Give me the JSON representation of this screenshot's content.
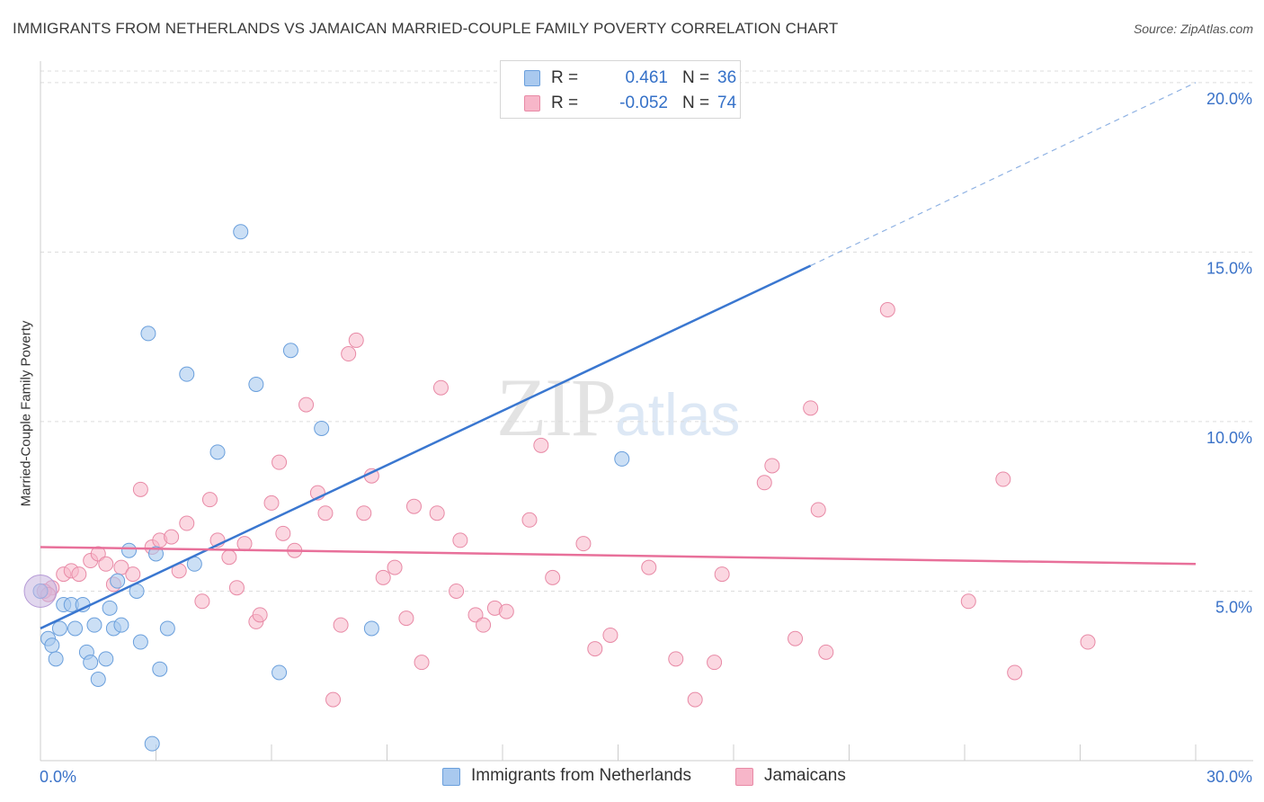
{
  "title": "IMMIGRANTS FROM NETHERLANDS VS JAMAICAN MARRIED-COUPLE FAMILY POVERTY CORRELATION CHART",
  "source": "Source: ZipAtlas.com",
  "watermark": {
    "zip": "ZIP",
    "atlas": "atlas"
  },
  "legend": {
    "series1": {
      "r_label": "R =",
      "r_value": "0.461",
      "n_label": "N =",
      "n_value": "36"
    },
    "series2": {
      "r_label": "R =",
      "r_value": "-0.052",
      "n_label": "N =",
      "n_value": "74"
    }
  },
  "chart_data": {
    "type": "scatter",
    "title": "IMMIGRANTS FROM NETHERLANDS VS JAMAICAN MARRIED-COUPLE FAMILY POVERTY CORRELATION CHART",
    "xlabel": "",
    "ylabel": "Married-Couple Family Poverty",
    "xlim": [
      0,
      30
    ],
    "ylim": [
      0,
      20.5
    ],
    "x_tick_labels": [
      "0.0%",
      "30.0%"
    ],
    "y_ticks": [
      5,
      10,
      15,
      20
    ],
    "y_tick_labels": [
      "5.0%",
      "10.0%",
      "15.0%",
      "20.0%"
    ],
    "colors": {
      "series1_fill": "#a9c9ef",
      "series1_stroke": "#6a9fdc",
      "series1_line": "#3a77d0",
      "series2_fill": "#f7b6c9",
      "series2_stroke": "#e88aa6",
      "series2_line": "#e8709a"
    },
    "series": [
      {
        "name": "Immigrants from Netherlands",
        "r": 0.461,
        "n": 36,
        "trend": {
          "x0": 0,
          "y0": 3.9,
          "x1": 20,
          "y1": 14.6,
          "dash_to_x": 30,
          "dash_to_y": 20.0
        },
        "points": [
          [
            0.0,
            5.0
          ],
          [
            0.2,
            3.6
          ],
          [
            0.3,
            3.4
          ],
          [
            0.4,
            3.0
          ],
          [
            0.5,
            3.9
          ],
          [
            0.6,
            4.6
          ],
          [
            0.8,
            4.6
          ],
          [
            0.9,
            3.9
          ],
          [
            1.1,
            4.6
          ],
          [
            1.2,
            3.2
          ],
          [
            1.3,
            2.9
          ],
          [
            1.4,
            4.0
          ],
          [
            1.5,
            2.4
          ],
          [
            1.7,
            3.0
          ],
          [
            1.8,
            4.5
          ],
          [
            1.9,
            3.9
          ],
          [
            2.0,
            5.3
          ],
          [
            2.1,
            4.0
          ],
          [
            2.3,
            6.2
          ],
          [
            2.5,
            5.0
          ],
          [
            2.6,
            3.5
          ],
          [
            2.8,
            12.6
          ],
          [
            2.9,
            0.5
          ],
          [
            3.0,
            6.1
          ],
          [
            3.1,
            2.7
          ],
          [
            3.3,
            3.9
          ],
          [
            3.8,
            11.4
          ],
          [
            4.0,
            5.8
          ],
          [
            4.6,
            9.1
          ],
          [
            5.2,
            15.6
          ],
          [
            5.6,
            11.1
          ],
          [
            6.2,
            2.6
          ],
          [
            6.5,
            12.1
          ],
          [
            7.3,
            9.8
          ],
          [
            8.6,
            3.9
          ],
          [
            15.1,
            8.9
          ]
        ]
      },
      {
        "name": "Jamaicans",
        "r": -0.052,
        "n": 74,
        "trend": {
          "x0": 0,
          "y0": 6.3,
          "x1": 30,
          "y1": 5.8
        },
        "points": [
          [
            0.3,
            5.1
          ],
          [
            0.6,
            5.5
          ],
          [
            0.8,
            5.6
          ],
          [
            1.0,
            5.5
          ],
          [
            1.3,
            5.9
          ],
          [
            1.5,
            6.1
          ],
          [
            1.7,
            5.8
          ],
          [
            1.9,
            5.2
          ],
          [
            2.1,
            5.7
          ],
          [
            2.4,
            5.5
          ],
          [
            2.6,
            8.0
          ],
          [
            2.9,
            6.3
          ],
          [
            3.1,
            6.5
          ],
          [
            3.4,
            6.6
          ],
          [
            3.6,
            5.6
          ],
          [
            3.8,
            7.0
          ],
          [
            4.2,
            4.7
          ],
          [
            4.4,
            7.7
          ],
          [
            4.6,
            6.5
          ],
          [
            4.9,
            6.0
          ],
          [
            5.1,
            5.1
          ],
          [
            5.3,
            6.4
          ],
          [
            5.6,
            4.1
          ],
          [
            5.7,
            4.3
          ],
          [
            6.0,
            7.6
          ],
          [
            6.2,
            8.8
          ],
          [
            6.3,
            6.7
          ],
          [
            6.6,
            6.2
          ],
          [
            6.9,
            10.5
          ],
          [
            7.2,
            7.9
          ],
          [
            7.4,
            7.3
          ],
          [
            7.6,
            1.8
          ],
          [
            7.8,
            4.0
          ],
          [
            8.0,
            12.0
          ],
          [
            8.2,
            12.4
          ],
          [
            8.4,
            7.3
          ],
          [
            8.6,
            8.4
          ],
          [
            8.9,
            5.4
          ],
          [
            9.2,
            5.7
          ],
          [
            9.5,
            4.2
          ],
          [
            9.7,
            7.5
          ],
          [
            9.9,
            2.9
          ],
          [
            10.3,
            7.3
          ],
          [
            10.4,
            11.0
          ],
          [
            10.8,
            5.0
          ],
          [
            10.9,
            6.5
          ],
          [
            11.3,
            4.3
          ],
          [
            11.5,
            4.0
          ],
          [
            11.8,
            4.5
          ],
          [
            12.1,
            4.4
          ],
          [
            12.7,
            7.1
          ],
          [
            13.0,
            9.3
          ],
          [
            13.3,
            5.4
          ],
          [
            14.1,
            6.4
          ],
          [
            14.4,
            3.3
          ],
          [
            14.8,
            3.7
          ],
          [
            15.8,
            5.7
          ],
          [
            16.5,
            3.0
          ],
          [
            17.0,
            1.8
          ],
          [
            17.5,
            2.9
          ],
          [
            17.7,
            5.5
          ],
          [
            18.8,
            8.2
          ],
          [
            19.0,
            8.7
          ],
          [
            19.6,
            3.6
          ],
          [
            20.0,
            10.4
          ],
          [
            20.2,
            7.4
          ],
          [
            20.4,
            3.2
          ],
          [
            22.0,
            13.3
          ],
          [
            24.1,
            4.7
          ],
          [
            25.0,
            8.3
          ],
          [
            25.3,
            2.6
          ],
          [
            27.2,
            3.5
          ],
          [
            0.1,
            5.0
          ],
          [
            0.2,
            4.9
          ]
        ]
      }
    ]
  }
}
